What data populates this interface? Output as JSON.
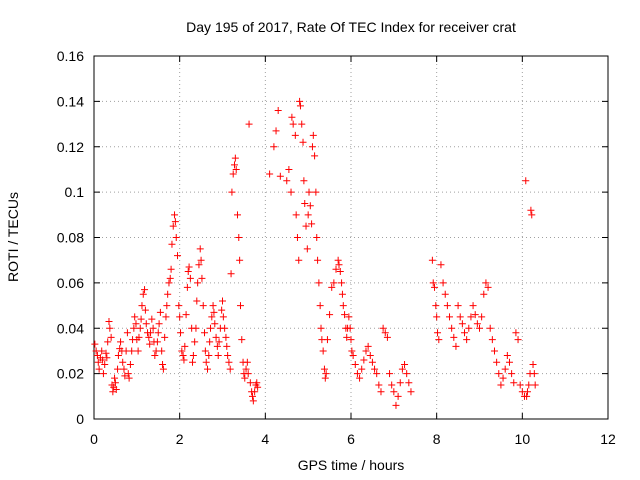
{
  "chart_data": {
    "type": "scatter",
    "title": "Day 195 of 2017, Rate Of TEC Index for receiver crat",
    "xlabel": "GPS time / hours",
    "ylabel": "ROTI / TECUs",
    "xlim": [
      0,
      12
    ],
    "ylim": [
      0,
      0.16
    ],
    "xticks": [
      0,
      2,
      4,
      6,
      8,
      10,
      12
    ],
    "xtick_labels": [
      "0",
      "2",
      "4",
      "6",
      "8",
      "10",
      "12"
    ],
    "yticks": [
      0,
      0.02,
      0.04,
      0.06,
      0.08,
      0.1,
      0.12,
      0.14,
      0.16
    ],
    "ytick_labels": [
      "0",
      "0.02",
      "0.04",
      "0.06",
      "0.08",
      "0.1",
      "0.12",
      "0.14",
      "0.16"
    ],
    "grid": true,
    "marker": "+",
    "color": "#ff0000",
    "points": [
      [
        0.02,
        0.033
      ],
      [
        0.05,
        0.03
      ],
      [
        0.08,
        0.028
      ],
      [
        0.1,
        0.025
      ],
      [
        0.12,
        0.022
      ],
      [
        0.15,
        0.027
      ],
      [
        0.18,
        0.03
      ],
      [
        0.2,
        0.026
      ],
      [
        0.22,
        0.02
      ],
      [
        0.25,
        0.024
      ],
      [
        0.28,
        0.029
      ],
      [
        0.3,
        0.027
      ],
      [
        0.32,
        0.034
      ],
      [
        0.35,
        0.043
      ],
      [
        0.37,
        0.04
      ],
      [
        0.4,
        0.036
      ],
      [
        0.42,
        0.015
      ],
      [
        0.44,
        0.012
      ],
      [
        0.46,
        0.014
      ],
      [
        0.48,
        0.018
      ],
      [
        0.5,
        0.016
      ],
      [
        0.52,
        0.013
      ],
      [
        0.55,
        0.022
      ],
      [
        0.57,
        0.028
      ],
      [
        0.6,
        0.031
      ],
      [
        0.62,
        0.034
      ],
      [
        0.65,
        0.03
      ],
      [
        0.67,
        0.025
      ],
      [
        0.7,
        0.022
      ],
      [
        0.72,
        0.019
      ],
      [
        0.75,
        0.03
      ],
      [
        0.78,
        0.038
      ],
      [
        0.8,
        0.02
      ],
      [
        0.82,
        0.018
      ],
      [
        0.85,
        0.024
      ],
      [
        0.88,
        0.03
      ],
      [
        0.9,
        0.035
      ],
      [
        0.93,
        0.04
      ],
      [
        0.95,
        0.045
      ],
      [
        0.98,
        0.042
      ],
      [
        1.0,
        0.035
      ],
      [
        1.03,
        0.03
      ],
      [
        1.05,
        0.036
      ],
      [
        1.08,
        0.04
      ],
      [
        1.1,
        0.044
      ],
      [
        1.12,
        0.05
      ],
      [
        1.15,
        0.055
      ],
      [
        1.18,
        0.057
      ],
      [
        1.2,
        0.048
      ],
      [
        1.22,
        0.042
      ],
      [
        1.25,
        0.038
      ],
      [
        1.28,
        0.036
      ],
      [
        1.3,
        0.033
      ],
      [
        1.32,
        0.038
      ],
      [
        1.35,
        0.044
      ],
      [
        1.38,
        0.04
      ],
      [
        1.4,
        0.034
      ],
      [
        1.42,
        0.028
      ],
      [
        1.45,
        0.03
      ],
      [
        1.48,
        0.034
      ],
      [
        1.5,
        0.038
      ],
      [
        1.52,
        0.042
      ],
      [
        1.55,
        0.047
      ],
      [
        1.58,
        0.03
      ],
      [
        1.6,
        0.024
      ],
      [
        1.62,
        0.022
      ],
      [
        1.65,
        0.036
      ],
      [
        1.68,
        0.045
      ],
      [
        1.7,
        0.05
      ],
      [
        1.72,
        0.055
      ],
      [
        1.75,
        0.06
      ],
      [
        1.78,
        0.062
      ],
      [
        1.8,
        0.066
      ],
      [
        1.82,
        0.077
      ],
      [
        1.85,
        0.085
      ],
      [
        1.88,
        0.09
      ],
      [
        1.9,
        0.087
      ],
      [
        1.92,
        0.08
      ],
      [
        1.95,
        0.072
      ],
      [
        1.98,
        0.05
      ],
      [
        2.0,
        0.045
      ],
      [
        2.02,
        0.038
      ],
      [
        2.05,
        0.03
      ],
      [
        2.08,
        0.028
      ],
      [
        2.1,
        0.026
      ],
      [
        2.12,
        0.032
      ],
      [
        2.15,
        0.046
      ],
      [
        2.18,
        0.058
      ],
      [
        2.2,
        0.065
      ],
      [
        2.22,
        0.067
      ],
      [
        2.25,
        0.062
      ],
      [
        2.28,
        0.04
      ],
      [
        2.3,
        0.025
      ],
      [
        2.32,
        0.028
      ],
      [
        2.35,
        0.034
      ],
      [
        2.38,
        0.04
      ],
      [
        2.4,
        0.052
      ],
      [
        2.42,
        0.06
      ],
      [
        2.45,
        0.068
      ],
      [
        2.48,
        0.075
      ],
      [
        2.5,
        0.07
      ],
      [
        2.52,
        0.062
      ],
      [
        2.55,
        0.05
      ],
      [
        2.58,
        0.038
      ],
      [
        2.6,
        0.03
      ],
      [
        2.62,
        0.025
      ],
      [
        2.65,
        0.022
      ],
      [
        2.68,
        0.028
      ],
      [
        2.7,
        0.034
      ],
      [
        2.72,
        0.04
      ],
      [
        2.75,
        0.045
      ],
      [
        2.78,
        0.05
      ],
      [
        2.8,
        0.047
      ],
      [
        2.82,
        0.042
      ],
      [
        2.85,
        0.036
      ],
      [
        2.88,
        0.032
      ],
      [
        2.9,
        0.028
      ],
      [
        2.92,
        0.034
      ],
      [
        2.95,
        0.04
      ],
      [
        2.98,
        0.048
      ],
      [
        3.0,
        0.052
      ],
      [
        3.02,
        0.045
      ],
      [
        3.05,
        0.04
      ],
      [
        3.08,
        0.036
      ],
      [
        3.1,
        0.032
      ],
      [
        3.12,
        0.028
      ],
      [
        3.15,
        0.025
      ],
      [
        3.18,
        0.022
      ],
      [
        3.2,
        0.064
      ],
      [
        3.22,
        0.1
      ],
      [
        3.25,
        0.108
      ],
      [
        3.28,
        0.112
      ],
      [
        3.3,
        0.115
      ],
      [
        3.32,
        0.11
      ],
      [
        3.35,
        0.09
      ],
      [
        3.38,
        0.08
      ],
      [
        3.4,
        0.07
      ],
      [
        3.42,
        0.05
      ],
      [
        3.45,
        0.035
      ],
      [
        3.48,
        0.025
      ],
      [
        3.5,
        0.02
      ],
      [
        3.52,
        0.018
      ],
      [
        3.55,
        0.022
      ],
      [
        3.58,
        0.025
      ],
      [
        3.6,
        0.02
      ],
      [
        3.62,
        0.13
      ],
      [
        3.65,
        0.016
      ],
      [
        3.68,
        0.012
      ],
      [
        3.7,
        0.01
      ],
      [
        3.72,
        0.008
      ],
      [
        3.75,
        0.012
      ],
      [
        3.78,
        0.015
      ],
      [
        3.8,
        0.016
      ],
      [
        3.82,
        0.014
      ],
      [
        4.1,
        0.108
      ],
      [
        4.2,
        0.12
      ],
      [
        4.25,
        0.127
      ],
      [
        4.3,
        0.136
      ],
      [
        4.35,
        0.107
      ],
      [
        4.5,
        0.105
      ],
      [
        4.55,
        0.11
      ],
      [
        4.6,
        0.1
      ],
      [
        4.62,
        0.133
      ],
      [
        4.65,
        0.13
      ],
      [
        4.7,
        0.125
      ],
      [
        4.72,
        0.09
      ],
      [
        4.75,
        0.08
      ],
      [
        4.78,
        0.07
      ],
      [
        4.8,
        0.14
      ],
      [
        4.82,
        0.138
      ],
      [
        4.85,
        0.13
      ],
      [
        4.88,
        0.122
      ],
      [
        4.9,
        0.105
      ],
      [
        4.92,
        0.095
      ],
      [
        4.95,
        0.085
      ],
      [
        4.98,
        0.075
      ],
      [
        5.0,
        0.09
      ],
      [
        5.02,
        0.1
      ],
      [
        5.05,
        0.094
      ],
      [
        5.08,
        0.086
      ],
      [
        5.1,
        0.12
      ],
      [
        5.12,
        0.125
      ],
      [
        5.15,
        0.116
      ],
      [
        5.18,
        0.1
      ],
      [
        5.2,
        0.08
      ],
      [
        5.22,
        0.07
      ],
      [
        5.25,
        0.06
      ],
      [
        5.28,
        0.05
      ],
      [
        5.3,
        0.04
      ],
      [
        5.32,
        0.035
      ],
      [
        5.35,
        0.03
      ],
      [
        5.38,
        0.022
      ],
      [
        5.4,
        0.018
      ],
      [
        5.42,
        0.02
      ],
      [
        5.45,
        0.035
      ],
      [
        5.5,
        0.046
      ],
      [
        5.55,
        0.058
      ],
      [
        5.6,
        0.06
      ],
      [
        5.65,
        0.066
      ],
      [
        5.7,
        0.07
      ],
      [
        5.72,
        0.068
      ],
      [
        5.75,
        0.065
      ],
      [
        5.78,
        0.06
      ],
      [
        5.8,
        0.055
      ],
      [
        5.82,
        0.05
      ],
      [
        5.85,
        0.046
      ],
      [
        5.88,
        0.04
      ],
      [
        5.9,
        0.036
      ],
      [
        5.92,
        0.04
      ],
      [
        5.95,
        0.045
      ],
      [
        5.98,
        0.04
      ],
      [
        6.0,
        0.035
      ],
      [
        6.02,
        0.03
      ],
      [
        6.05,
        0.028
      ],
      [
        6.1,
        0.024
      ],
      [
        6.15,
        0.02
      ],
      [
        6.2,
        0.018
      ],
      [
        6.25,
        0.022
      ],
      [
        6.3,
        0.026
      ],
      [
        6.35,
        0.03
      ],
      [
        6.4,
        0.032
      ],
      [
        6.45,
        0.028
      ],
      [
        6.5,
        0.025
      ],
      [
        6.55,
        0.022
      ],
      [
        6.6,
        0.02
      ],
      [
        6.65,
        0.015
      ],
      [
        6.7,
        0.012
      ],
      [
        6.75,
        0.04
      ],
      [
        6.8,
        0.038
      ],
      [
        6.85,
        0.036
      ],
      [
        6.9,
        0.02
      ],
      [
        6.95,
        0.015
      ],
      [
        7.0,
        0.012
      ],
      [
        7.05,
        0.006
      ],
      [
        7.1,
        0.01
      ],
      [
        7.15,
        0.016
      ],
      [
        7.2,
        0.022
      ],
      [
        7.25,
        0.024
      ],
      [
        7.3,
        0.02
      ],
      [
        7.35,
        0.016
      ],
      [
        7.4,
        0.012
      ],
      [
        7.9,
        0.07
      ],
      [
        7.92,
        0.06
      ],
      [
        7.95,
        0.058
      ],
      [
        7.98,
        0.05
      ],
      [
        8.0,
        0.045
      ],
      [
        8.02,
        0.038
      ],
      [
        8.05,
        0.035
      ],
      [
        8.1,
        0.068
      ],
      [
        8.15,
        0.06
      ],
      [
        8.2,
        0.055
      ],
      [
        8.25,
        0.05
      ],
      [
        8.3,
        0.045
      ],
      [
        8.35,
        0.04
      ],
      [
        8.4,
        0.036
      ],
      [
        8.45,
        0.032
      ],
      [
        8.5,
        0.05
      ],
      [
        8.55,
        0.045
      ],
      [
        8.6,
        0.042
      ],
      [
        8.65,
        0.038
      ],
      [
        8.7,
        0.035
      ],
      [
        8.75,
        0.04
      ],
      [
        8.8,
        0.045
      ],
      [
        8.85,
        0.05
      ],
      [
        8.9,
        0.046
      ],
      [
        8.95,
        0.042
      ],
      [
        9.0,
        0.04
      ],
      [
        9.05,
        0.045
      ],
      [
        9.1,
        0.055
      ],
      [
        9.15,
        0.06
      ],
      [
        9.2,
        0.058
      ],
      [
        9.25,
        0.04
      ],
      [
        9.3,
        0.035
      ],
      [
        9.35,
        0.03
      ],
      [
        9.4,
        0.025
      ],
      [
        9.45,
        0.02
      ],
      [
        9.5,
        0.015
      ],
      [
        9.55,
        0.018
      ],
      [
        9.6,
        0.022
      ],
      [
        9.65,
        0.028
      ],
      [
        9.7,
        0.025
      ],
      [
        9.75,
        0.02
      ],
      [
        9.8,
        0.016
      ],
      [
        9.85,
        0.038
      ],
      [
        9.9,
        0.035
      ],
      [
        9.95,
        0.015
      ],
      [
        10.0,
        0.012
      ],
      [
        10.05,
        0.01
      ],
      [
        10.08,
        0.105
      ],
      [
        10.1,
        0.01
      ],
      [
        10.12,
        0.012
      ],
      [
        10.15,
        0.015
      ],
      [
        10.18,
        0.02
      ],
      [
        10.2,
        0.092
      ],
      [
        10.22,
        0.09
      ],
      [
        10.25,
        0.024
      ],
      [
        10.28,
        0.02
      ],
      [
        10.3,
        0.015
      ]
    ]
  }
}
